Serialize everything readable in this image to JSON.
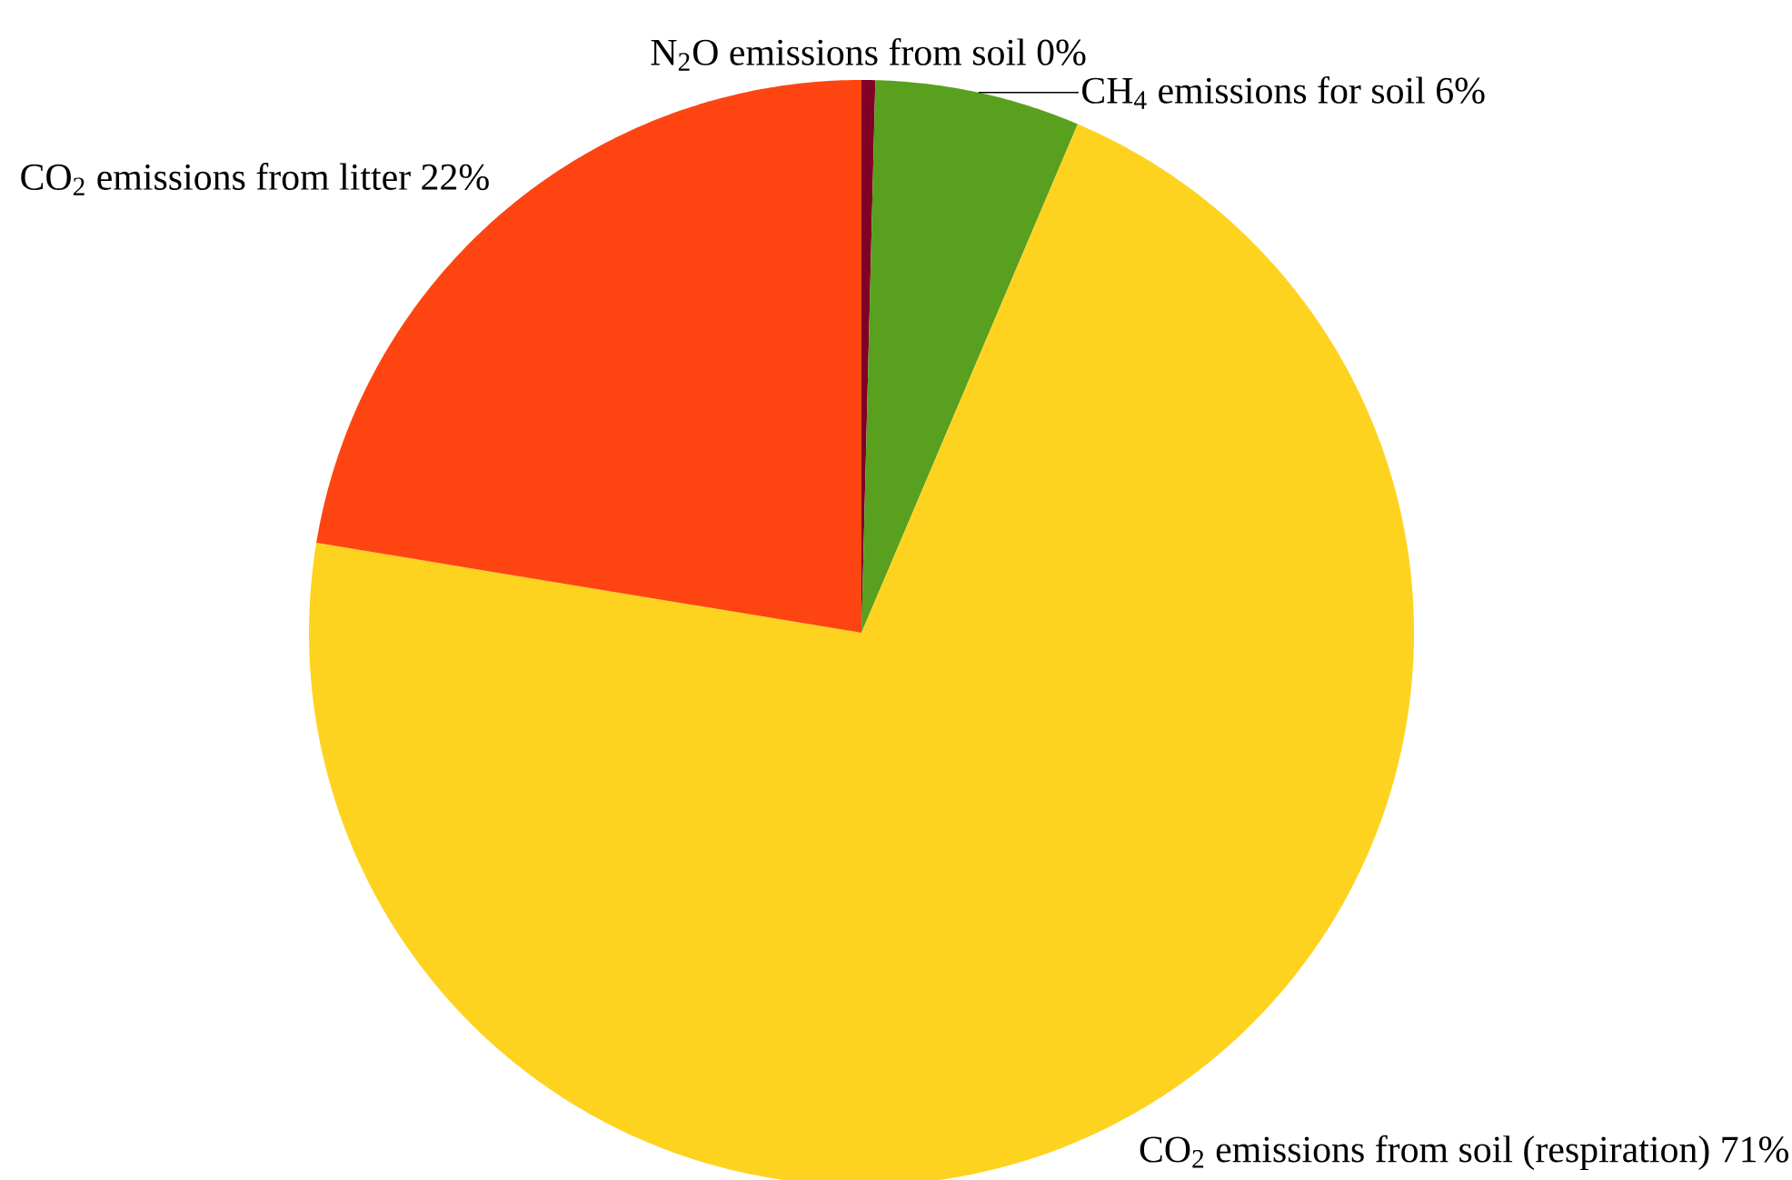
{
  "chart_data": {
    "type": "pie",
    "categories": [
      "N$_{2}$O emissions from soil",
      "CH$_{4}$ emissions for soil",
      "CO$_{2}$ emissions from soil (respiration)",
      "CO$_{2}$ emissions from litter"
    ],
    "values": [
      0.4,
      6,
      71.2,
      22.4
    ],
    "value_labels": [
      "0%",
      "6%",
      "71%",
      "22%"
    ],
    "colors": [
      "#800026",
      "#58a01e",
      "#fed320",
      "#fe4511"
    ]
  }
}
